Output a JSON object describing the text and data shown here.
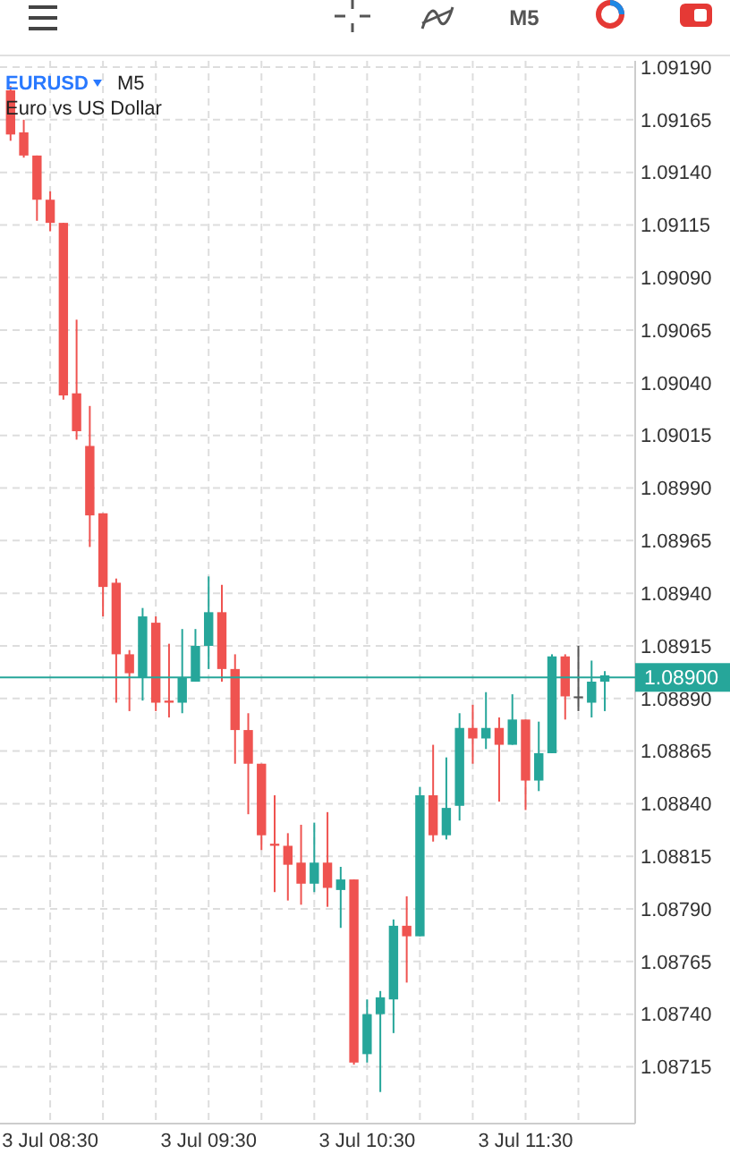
{
  "chart_data": {
    "type": "candlestick",
    "title": "EURUSD",
    "subtitle": "Euro vs US Dollar",
    "annotations": [
      "M5",
      "M5"
    ],
    "categories": [
      null,
      null,
      null,
      "3 Jul 08:30",
      null,
      null,
      null,
      null,
      null,
      null,
      null,
      null,
      null,
      null,
      null,
      "3 Jul 09:30",
      null,
      null,
      null,
      null,
      null,
      null,
      null,
      null,
      null,
      null,
      null,
      "3 Jul 10:30",
      null,
      null,
      null,
      null,
      null,
      null,
      null,
      null,
      null,
      null,
      null,
      "3 Jul 11:30",
      null,
      null,
      null,
      null,
      null,
      null
    ],
    "ohlc": [
      [
        1.09179,
        1.09181,
        1.09155,
        1.09158
      ],
      [
        1.09159,
        1.09165,
        1.09147,
        1.09148
      ],
      [
        1.09148,
        1.09148,
        1.09117,
        1.09127
      ],
      [
        1.09127,
        1.09131,
        1.09112,
        1.09116
      ],
      [
        1.09116,
        1.09116,
        1.09032,
        1.09034
      ],
      [
        1.09035,
        1.0907,
        1.09013,
        1.09017
      ],
      [
        1.0901,
        1.09029,
        1.08962,
        1.08977
      ],
      [
        1.08978,
        1.08978,
        1.08929,
        1.08943
      ],
      [
        1.08945,
        1.08947,
        1.08888,
        1.08911
      ],
      [
        1.08911,
        1.08913,
        1.08884,
        1.08902
      ],
      [
        1.089,
        1.08933,
        1.08889,
        1.08929
      ],
      [
        1.08926,
        1.08929,
        1.08884,
        1.08888
      ],
      [
        1.08889,
        1.08916,
        1.08881,
        1.08888
      ],
      [
        1.08888,
        1.08923,
        1.08883,
        1.089
      ],
      [
        1.08898,
        1.08923,
        1.08898,
        1.08915
      ],
      [
        1.08915,
        1.08948,
        1.08904,
        1.08931
      ],
      [
        1.08931,
        1.08944,
        1.08898,
        1.08904
      ],
      [
        1.08904,
        1.08911,
        1.08859,
        1.08875
      ],
      [
        1.08875,
        1.08883,
        1.08835,
        1.08859
      ],
      [
        1.08859,
        1.08859,
        1.08818,
        1.08825
      ],
      [
        1.08821,
        1.08844,
        1.08798,
        1.0882
      ],
      [
        1.0882,
        1.08826,
        1.08794,
        1.08811
      ],
      [
        1.08812,
        1.0883,
        1.08792,
        1.08802
      ],
      [
        1.08802,
        1.08831,
        1.08798,
        1.08812
      ],
      [
        1.08812,
        1.08836,
        1.08791,
        1.088
      ],
      [
        1.08799,
        1.0881,
        1.08781,
        1.08804
      ],
      [
        1.08804,
        1.08804,
        1.08716,
        1.08717
      ],
      [
        1.08721,
        1.08747,
        1.08717,
        1.0874
      ],
      [
        1.0874,
        1.08751,
        1.08703,
        1.08748
      ],
      [
        1.08747,
        1.08785,
        1.08731,
        1.08782
      ],
      [
        1.08782,
        1.08796,
        1.08755,
        1.08777
      ],
      [
        1.08777,
        1.08848,
        1.08777,
        1.08844
      ],
      [
        1.08844,
        1.08868,
        1.08822,
        1.08825
      ],
      [
        1.08825,
        1.08862,
        1.08823,
        1.08838
      ],
      [
        1.08839,
        1.08883,
        1.08832,
        1.08876
      ],
      [
        1.08876,
        1.08887,
        1.08859,
        1.08871
      ],
      [
        1.08871,
        1.08893,
        1.08866,
        1.08876
      ],
      [
        1.08876,
        1.08881,
        1.08841,
        1.08868
      ],
      [
        1.08868,
        1.08892,
        1.08868,
        1.0888
      ],
      [
        1.0888,
        1.0888,
        1.08837,
        1.08851
      ],
      [
        1.08851,
        1.08879,
        1.08846,
        1.08864
      ],
      [
        1.08864,
        1.08911,
        1.08864,
        1.0891
      ],
      [
        1.0891,
        1.08911,
        1.0888,
        1.08891
      ],
      [
        1.08891,
        1.08915,
        1.08884,
        1.08891
      ],
      [
        1.08888,
        1.08908,
        1.08881,
        1.08898
      ],
      [
        1.08898,
        1.08903,
        1.08884,
        1.08901
      ]
    ],
    "colors": [
      "#ef5350",
      "#ef5350",
      "#ef5350",
      "#ef5350",
      "#ef5350",
      "#ef5350",
      "#ef5350",
      "#ef5350",
      "#ef5350",
      "#ef5350",
      "#26a69a",
      "#ef5350",
      "#ef5350",
      "#26a69a",
      "#26a69a",
      "#26a69a",
      "#ef5350",
      "#ef5350",
      "#ef5350",
      "#ef5350",
      "#ef5350",
      "#ef5350",
      "#ef5350",
      "#26a69a",
      "#ef5350",
      "#26a69a",
      "#ef5350",
      "#26a69a",
      "#26a69a",
      "#26a69a",
      "#ef5350",
      "#26a69a",
      "#ef5350",
      "#26a69a",
      "#26a69a",
      "#ef5350",
      "#26a69a",
      "#ef5350",
      "#26a69a",
      "#ef5350",
      "#26a69a",
      "#26a69a",
      "#ef5350",
      "#555555",
      "#26a69a",
      "#26a69a"
    ],
    "ylim": [
      1.08688,
      1.09193
    ],
    "yticks": [
      1.08715,
      {
        "value": 1.0874,
        "label": "1.08740"
      },
      1.08765,
      {
        "value": 1.0879,
        "label": "1.08790"
      },
      1.08815,
      {
        "value": 1.0884,
        "label": "1.08840"
      },
      1.08865,
      {
        "value": 1.0889,
        "label": "1.08890"
      },
      1.08915,
      {
        "value": 1.0894,
        "label": "1.08940"
      },
      1.08965,
      {
        "value": 1.0899,
        "label": "1.08990"
      },
      1.09015,
      {
        "value": 1.0904,
        "label": "1.09040"
      },
      1.09065,
      {
        "value": 1.0909,
        "label": "1.09090"
      },
      1.09115,
      {
        "value": 1.0914,
        "label": "1.09140"
      },
      1.09165,
      {
        "value": 1.0919,
        "label": "1.09190"
      }
    ],
    "ref_lines": [
      {
        "axis": "y",
        "value": 1.089,
        "label": "1.08900",
        "color": "#26a69a"
      }
    ],
    "grid": true
  }
}
